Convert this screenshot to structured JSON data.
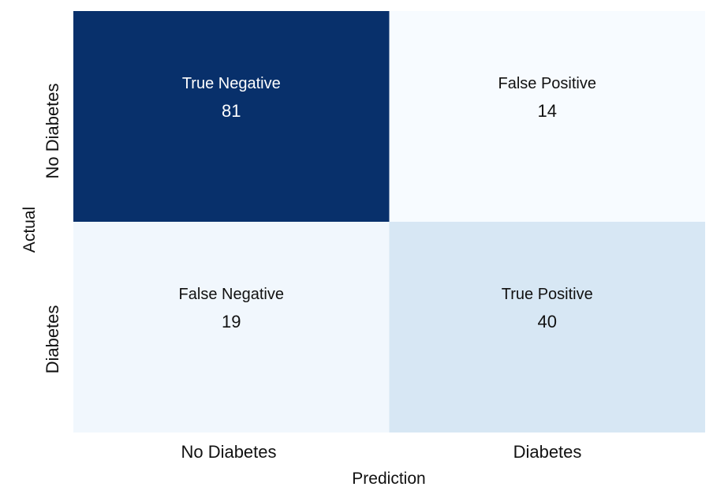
{
  "chart_data": {
    "type": "heatmap",
    "title": "",
    "xlabel": "Prediction",
    "ylabel": "Actual",
    "x_categories": [
      "No Diabetes",
      "Diabetes"
    ],
    "y_categories": [
      "No Diabetes",
      "Diabetes"
    ],
    "values": [
      [
        81,
        14
      ],
      [
        19,
        40
      ]
    ],
    "cell_labels": [
      [
        "True Negative",
        "False Positive"
      ],
      [
        "False Negative",
        "True Positive"
      ]
    ],
    "colormap": "Blues",
    "color_range": [
      14,
      81
    ],
    "grid": false,
    "legend": "none"
  },
  "colors": {
    "low": "#f7fbff",
    "mid": "#94c4df",
    "high": "#08306b",
    "text_dark": "#111111",
    "text_light": "#ffffff"
  }
}
